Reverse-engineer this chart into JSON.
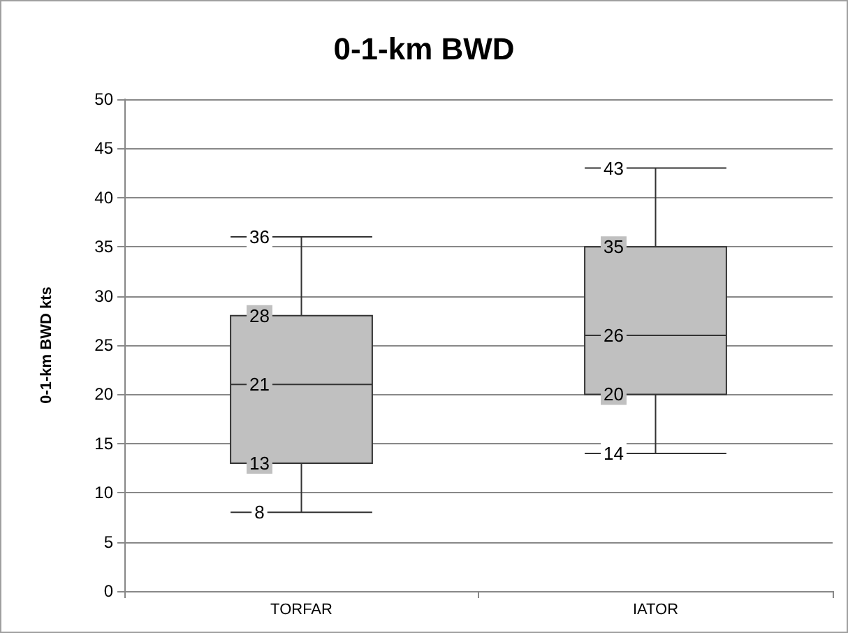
{
  "chart_data": {
    "type": "box",
    "title": "0-1-km BWD",
    "ylabel": "0-1-km BWD kts",
    "categories": [
      "TORFAR",
      "IATOR"
    ],
    "boxes": [
      {
        "low": 8,
        "q1": 13,
        "median": 21,
        "q3": 28,
        "high": 36
      },
      {
        "low": 14,
        "q1": 20,
        "median": 26,
        "q3": 35,
        "high": 43
      }
    ],
    "color": "#c0c0c0",
    "ylim": [
      0,
      50
    ],
    "yticks": [
      0,
      5,
      10,
      15,
      20,
      25,
      30,
      35,
      40,
      45,
      50
    ],
    "grid": "y",
    "annotations": [
      {
        "text": "36",
        "x": "TORFAR",
        "y": 36
      },
      {
        "text": "28",
        "x": "TORFAR",
        "y": 28
      },
      {
        "text": "21",
        "x": "TORFAR",
        "y": 21
      },
      {
        "text": "13",
        "x": "TORFAR",
        "y": 13
      },
      {
        "text": "8",
        "x": "TORFAR",
        "y": 8
      },
      {
        "text": "43",
        "x": "IATOR",
        "y": 43
      },
      {
        "text": "35",
        "x": "IATOR",
        "y": 35
      },
      {
        "text": "26",
        "x": "IATOR",
        "y": 26
      },
      {
        "text": "20",
        "x": "IATOR",
        "y": 20
      },
      {
        "text": "14",
        "x": "IATOR",
        "y": 14
      }
    ]
  }
}
